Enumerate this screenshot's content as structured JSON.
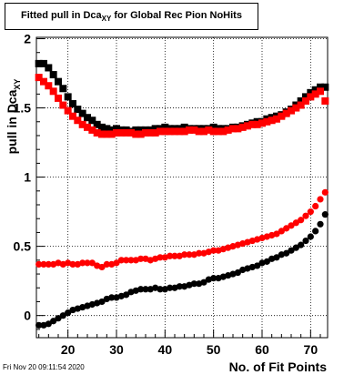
{
  "title": {
    "prefix": "Fitted pull in Dca",
    "subscript": "XY",
    "suffix": " for Global Rec Pion NoHits"
  },
  "footer": {
    "timestamp": "Fri Nov 20 09:11:54 2020"
  },
  "chart_data": {
    "type": "scatter",
    "xlabel": "No. of Fit Points",
    "ylabel": "pull in Dca",
    "ylabel_subscript": "XY",
    "xlim": [
      13.5,
      73.5
    ],
    "ylim": [
      -0.16,
      2.01
    ],
    "xticks": [
      20,
      30,
      40,
      50,
      60,
      70
    ],
    "yticks": [
      0,
      0.5,
      1,
      1.5,
      2
    ],
    "ytick_labels": [
      "0",
      "0.5",
      "1",
      "1.5",
      "2"
    ],
    "grid": true,
    "series": [
      {
        "marker": "square",
        "color": "#000000",
        "x": [
          14,
          15,
          16,
          17,
          18,
          19,
          20,
          21,
          22,
          23,
          24,
          25,
          26,
          27,
          28,
          29,
          30,
          31,
          32,
          33,
          34,
          35,
          36,
          37,
          38,
          39,
          40,
          41,
          42,
          43,
          44,
          45,
          46,
          47,
          48,
          49,
          50,
          51,
          52,
          53,
          54,
          55,
          56,
          57,
          58,
          59,
          60,
          61,
          62,
          63,
          64,
          65,
          66,
          67,
          68,
          69,
          70,
          71,
          72,
          73
        ],
        "y": [
          1.82,
          1.82,
          1.79,
          1.74,
          1.69,
          1.64,
          1.58,
          1.53,
          1.49,
          1.46,
          1.43,
          1.41,
          1.38,
          1.36,
          1.35,
          1.34,
          1.35,
          1.34,
          1.34,
          1.33,
          1.34,
          1.34,
          1.34,
          1.34,
          1.35,
          1.35,
          1.36,
          1.35,
          1.35,
          1.35,
          1.36,
          1.35,
          1.35,
          1.35,
          1.35,
          1.35,
          1.36,
          1.35,
          1.35,
          1.35,
          1.36,
          1.36,
          1.37,
          1.38,
          1.39,
          1.4,
          1.4,
          1.42,
          1.43,
          1.44,
          1.45,
          1.47,
          1.49,
          1.52,
          1.55,
          1.58,
          1.61,
          1.63,
          1.65,
          1.65
        ]
      },
      {
        "marker": "square",
        "color": "#ff0000",
        "x": [
          14,
          15,
          16,
          17,
          18,
          19,
          20,
          21,
          22,
          23,
          24,
          25,
          26,
          27,
          28,
          29,
          30,
          31,
          32,
          33,
          34,
          35,
          36,
          37,
          38,
          39,
          40,
          41,
          42,
          43,
          44,
          45,
          46,
          47,
          48,
          49,
          50,
          51,
          52,
          53,
          54,
          55,
          56,
          57,
          58,
          59,
          60,
          61,
          62,
          63,
          64,
          65,
          66,
          67,
          68,
          69,
          70,
          71,
          72,
          73
        ],
        "y": [
          1.72,
          1.69,
          1.66,
          1.62,
          1.57,
          1.52,
          1.48,
          1.44,
          1.41,
          1.38,
          1.36,
          1.34,
          1.32,
          1.31,
          1.31,
          1.31,
          1.32,
          1.32,
          1.32,
          1.32,
          1.31,
          1.31,
          1.32,
          1.32,
          1.32,
          1.33,
          1.33,
          1.33,
          1.33,
          1.33,
          1.33,
          1.34,
          1.34,
          1.33,
          1.33,
          1.34,
          1.33,
          1.33,
          1.33,
          1.34,
          1.35,
          1.35,
          1.36,
          1.37,
          1.38,
          1.38,
          1.39,
          1.4,
          1.41,
          1.42,
          1.44,
          1.46,
          1.48,
          1.5,
          1.52,
          1.55,
          1.58,
          1.6,
          1.62,
          1.55
        ]
      },
      {
        "marker": "diamond",
        "color": "#000000",
        "x": [
          14,
          15,
          16,
          17,
          18,
          19,
          20,
          21,
          22,
          23,
          24,
          25,
          26,
          27,
          28,
          29,
          30,
          31,
          32,
          33,
          34,
          35,
          36,
          37,
          38,
          39,
          40,
          41,
          42,
          43,
          44,
          45,
          46,
          47,
          48,
          49,
          50,
          51,
          52,
          53,
          54,
          55,
          56,
          57,
          58,
          59,
          60,
          61,
          62,
          63,
          64,
          65,
          66,
          67,
          68,
          69,
          70,
          71,
          72,
          73
        ],
        "y": [
          -0.07,
          -0.07,
          -0.06,
          -0.04,
          -0.02,
          0.0,
          0.02,
          0.04,
          0.05,
          0.06,
          0.07,
          0.08,
          0.09,
          0.1,
          0.12,
          0.13,
          0.13,
          0.14,
          0.15,
          0.17,
          0.18,
          0.19,
          0.19,
          0.19,
          0.2,
          0.19,
          0.19,
          0.2,
          0.2,
          0.21,
          0.21,
          0.22,
          0.23,
          0.23,
          0.24,
          0.26,
          0.27,
          0.27,
          0.28,
          0.29,
          0.3,
          0.31,
          0.33,
          0.34,
          0.35,
          0.36,
          0.38,
          0.39,
          0.41,
          0.42,
          0.44,
          0.45,
          0.47,
          0.49,
          0.51,
          0.54,
          0.57,
          0.61,
          0.66,
          0.73
        ]
      },
      {
        "marker": "diamond",
        "color": "#ff0000",
        "x": [
          14,
          15,
          16,
          17,
          18,
          19,
          20,
          21,
          22,
          23,
          24,
          25,
          26,
          27,
          28,
          29,
          30,
          31,
          32,
          33,
          34,
          35,
          36,
          37,
          38,
          39,
          40,
          41,
          42,
          43,
          44,
          45,
          46,
          47,
          48,
          49,
          50,
          51,
          52,
          53,
          54,
          55,
          56,
          57,
          58,
          59,
          60,
          61,
          62,
          63,
          64,
          65,
          66,
          67,
          68,
          69,
          70,
          71,
          72,
          73
        ],
        "y": [
          0.37,
          0.37,
          0.37,
          0.37,
          0.38,
          0.37,
          0.38,
          0.37,
          0.37,
          0.38,
          0.38,
          0.38,
          0.36,
          0.35,
          0.37,
          0.37,
          0.38,
          0.4,
          0.4,
          0.4,
          0.4,
          0.41,
          0.41,
          0.4,
          0.41,
          0.42,
          0.42,
          0.43,
          0.43,
          0.43,
          0.44,
          0.44,
          0.44,
          0.45,
          0.45,
          0.46,
          0.47,
          0.47,
          0.48,
          0.49,
          0.5,
          0.51,
          0.52,
          0.53,
          0.54,
          0.55,
          0.56,
          0.57,
          0.58,
          0.59,
          0.61,
          0.63,
          0.65,
          0.67,
          0.69,
          0.72,
          0.75,
          0.79,
          0.84,
          0.89
        ]
      }
    ]
  }
}
